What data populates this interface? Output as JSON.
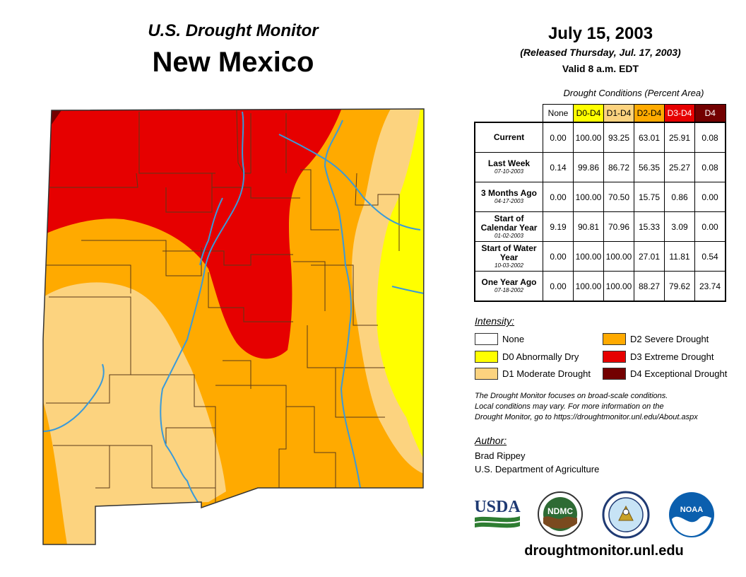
{
  "header": {
    "subtitle": "U.S. Drought Monitor",
    "state": "New Mexico",
    "date": "July 15, 2003",
    "released": "(Released Thursday, Jul. 17, 2003)",
    "valid": "Valid 8 a.m. EDT"
  },
  "table": {
    "caption": "Drought Conditions (Percent Area)",
    "columns": [
      {
        "label": "None",
        "color": "#ffffff"
      },
      {
        "label": "D0-D4",
        "color": "#ffff00"
      },
      {
        "label": "D1-D4",
        "color": "#fcd37f"
      },
      {
        "label": "D2-D4",
        "color": "#ffaa00"
      },
      {
        "label": "D3-D4",
        "color": "#e60000"
      },
      {
        "label": "D4",
        "color": "#730000"
      }
    ],
    "rows": [
      {
        "label": "Current",
        "date": "",
        "values": [
          "0.00",
          "100.00",
          "93.25",
          "63.01",
          "25.91",
          "0.08"
        ]
      },
      {
        "label": "Last Week",
        "date": "07-10-2003",
        "values": [
          "0.14",
          "99.86",
          "86.72",
          "56.35",
          "25.27",
          "0.08"
        ]
      },
      {
        "label": "3 Months Ago",
        "date": "04-17-2003",
        "values": [
          "0.00",
          "100.00",
          "70.50",
          "15.75",
          "0.86",
          "0.00"
        ]
      },
      {
        "label": "Start of Calendar Year",
        "date": "01-02-2003",
        "values": [
          "9.19",
          "90.81",
          "70.96",
          "15.33",
          "3.09",
          "0.00"
        ]
      },
      {
        "label": "Start of Water Year",
        "date": "10-03-2002",
        "values": [
          "0.00",
          "100.00",
          "100.00",
          "27.01",
          "11.81",
          "0.54"
        ]
      },
      {
        "label": "One Year Ago",
        "date": "07-18-2002",
        "values": [
          "0.00",
          "100.00",
          "100.00",
          "88.27",
          "79.62",
          "23.74"
        ]
      }
    ]
  },
  "legend": {
    "title": "Intensity:",
    "items": [
      {
        "label": "None",
        "color": "#ffffff"
      },
      {
        "label": "D0 Abnormally Dry",
        "color": "#ffff00"
      },
      {
        "label": "D1 Moderate Drought",
        "color": "#fcd37f"
      },
      {
        "label": "D2 Severe Drought",
        "color": "#ffaa00"
      },
      {
        "label": "D3 Extreme Drought",
        "color": "#e60000"
      },
      {
        "label": "D4 Exceptional Drought",
        "color": "#730000"
      }
    ]
  },
  "disclaimer": {
    "line1": "The Drought Monitor focuses on broad-scale conditions.",
    "line2": "Local conditions may vary. For more information on the",
    "line3": "Drought Monitor, go to https://droughtmonitor.unl.edu/About.aspx"
  },
  "author": {
    "title": "Author:",
    "name": "Brad Rippey",
    "org": "U.S. Department of Agriculture"
  },
  "logos": {
    "usda": "USDA",
    "ndmc": "NDMC",
    "noaa": "NOAA"
  },
  "website": "droughtmonitor.unl.edu",
  "colors": {
    "river": "#3a9ad9",
    "county_line": "#5a3a1a"
  }
}
